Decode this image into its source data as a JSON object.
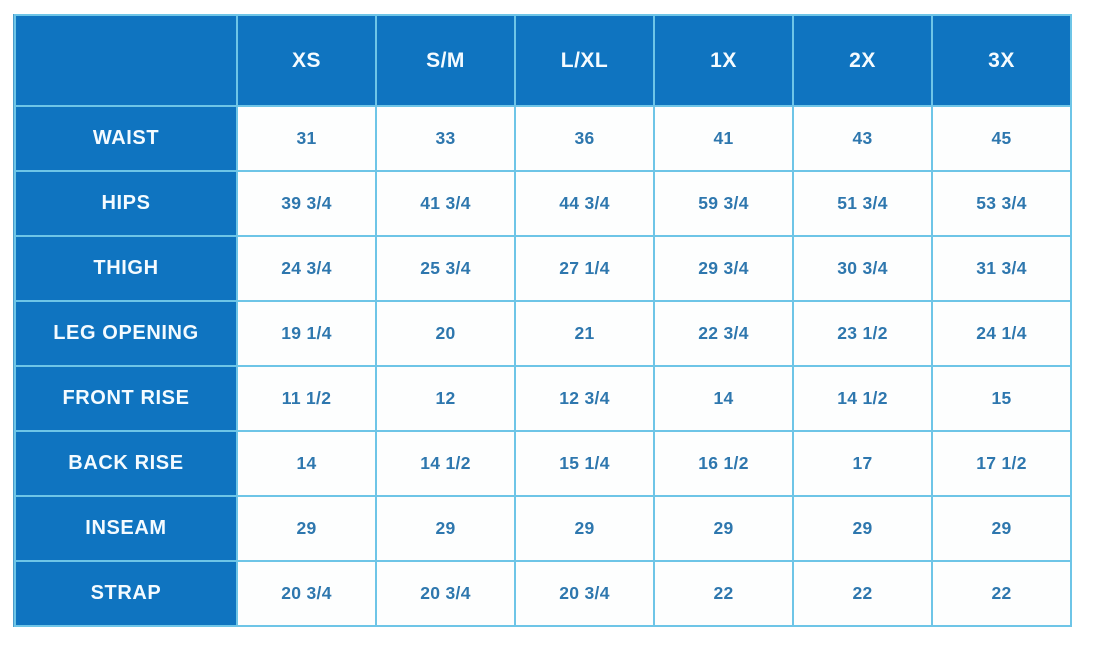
{
  "table": {
    "size_labels": [
      "XS",
      "S/M",
      "L/XL",
      "1X",
      "2X",
      "3X"
    ],
    "rows": [
      {
        "label": "WAIST",
        "values": [
          "31",
          "33",
          "36",
          "41",
          "43",
          "45"
        ]
      },
      {
        "label": "HIPS",
        "values": [
          "39 3/4",
          "41 3/4",
          "44 3/4",
          "59 3/4",
          "51 3/4",
          "53 3/4"
        ]
      },
      {
        "label": "THIGH",
        "values": [
          "24 3/4",
          "25 3/4",
          "27 1/4",
          "29 3/4",
          "30 3/4",
          "31 3/4"
        ]
      },
      {
        "label": "LEG OPENING",
        "values": [
          "19 1/4",
          "20",
          "21",
          "22 3/4",
          "23 1/2",
          "24 1/4"
        ]
      },
      {
        "label": "FRONT RISE",
        "values": [
          "11 1/2",
          "12",
          "12 3/4",
          "14",
          "14 1/2",
          "15"
        ]
      },
      {
        "label": "BACK RISE",
        "values": [
          "14",
          "14 1/2",
          "15 1/4",
          "16 1/2",
          "17",
          "17 1/2"
        ]
      },
      {
        "label": "INSEAM",
        "values": [
          "29",
          "29",
          "29",
          "29",
          "29",
          "29"
        ]
      },
      {
        "label": "STRAP",
        "values": [
          "20 3/4",
          "20 3/4",
          "20 3/4",
          "22",
          "22",
          "22"
        ]
      }
    ]
  },
  "colors": {
    "cell_blue": "#0f74c0",
    "border_light_blue": "#6ec5e7",
    "value_text_blue": "#2e77ae",
    "label_text": "#f4fbff",
    "background": "#ffffff"
  },
  "chart_data": {
    "type": "table",
    "title": "",
    "columns": [
      "",
      "XS",
      "S/M",
      "L/XL",
      "1X",
      "2X",
      "3X"
    ],
    "rows": [
      [
        "WAIST",
        "31",
        "33",
        "36",
        "41",
        "43",
        "45"
      ],
      [
        "HIPS",
        "39 3/4",
        "41 3/4",
        "44 3/4",
        "59 3/4",
        "51 3/4",
        "53 3/4"
      ],
      [
        "THIGH",
        "24 3/4",
        "25 3/4",
        "27 1/4",
        "29 3/4",
        "30 3/4",
        "31 3/4"
      ],
      [
        "LEG OPENING",
        "19 1/4",
        "20",
        "21",
        "22 3/4",
        "23 1/2",
        "24 1/4"
      ],
      [
        "FRONT RISE",
        "11 1/2",
        "12",
        "12 3/4",
        "14",
        "14 1/2",
        "15"
      ],
      [
        "BACK RISE",
        "14",
        "14 1/2",
        "15 1/4",
        "16 1/2",
        "17",
        "17 1/2"
      ],
      [
        "INSEAM",
        "29",
        "29",
        "29",
        "29",
        "29",
        "29"
      ],
      [
        "STRAP",
        "20 3/4",
        "20 3/4",
        "20 3/4",
        "22",
        "22",
        "22"
      ]
    ]
  }
}
